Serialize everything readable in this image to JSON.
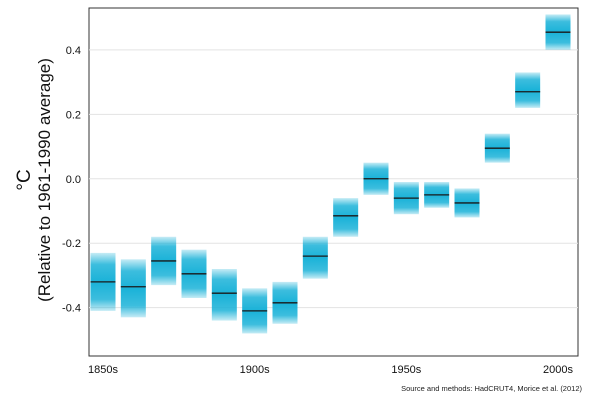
{
  "chart_data": {
    "type": "box",
    "title": "",
    "xlabel": "",
    "ylabel_unit": "°C",
    "ylabel": "(Relative to 1961-1990 average)",
    "categories": [
      "1850s",
      "1860s",
      "1870s",
      "1880s",
      "1890s",
      "1900s",
      "1910s",
      "1920s",
      "1930s",
      "1940s",
      "1950s",
      "1960s",
      "1970s",
      "1980s",
      "1990s",
      "2000s"
    ],
    "x_tick_labels": [
      "1850s",
      "",
      "",
      "",
      "",
      "1900s",
      "",
      "",
      "",
      "",
      "1950s",
      "",
      "",
      "",
      "",
      "2000s"
    ],
    "series": [
      {
        "central": [
          -0.32,
          -0.335,
          -0.255,
          -0.295,
          -0.355,
          -0.41,
          -0.385,
          -0.24,
          -0.115,
          0.0,
          -0.06,
          -0.05,
          -0.075,
          0.095,
          0.27,
          0.455
        ],
        "lower": [
          -0.41,
          -0.43,
          -0.33,
          -0.37,
          -0.44,
          -0.48,
          -0.45,
          -0.31,
          -0.18,
          -0.05,
          -0.11,
          -0.09,
          -0.12,
          0.05,
          0.22,
          0.4
        ],
        "upper": [
          -0.23,
          -0.25,
          -0.18,
          -0.22,
          -0.28,
          -0.34,
          -0.32,
          -0.18,
          -0.06,
          0.05,
          -0.01,
          -0.01,
          -0.03,
          0.14,
          0.33,
          0.51
        ]
      }
    ],
    "yticks": [
      -0.4,
      -0.2,
      0.0,
      0.2,
      0.4
    ],
    "ytick_labels": [
      "-0.4",
      "-0.2",
      "0.0",
      "0.2",
      "0.4"
    ],
    "ylim": [
      -0.55,
      0.53
    ],
    "grid": true,
    "box_color": "#1ab2d8",
    "median_color": "#1a1a1a"
  },
  "source_note": "Source and methods: HadCRUT4,  Morice et al. (2012)"
}
